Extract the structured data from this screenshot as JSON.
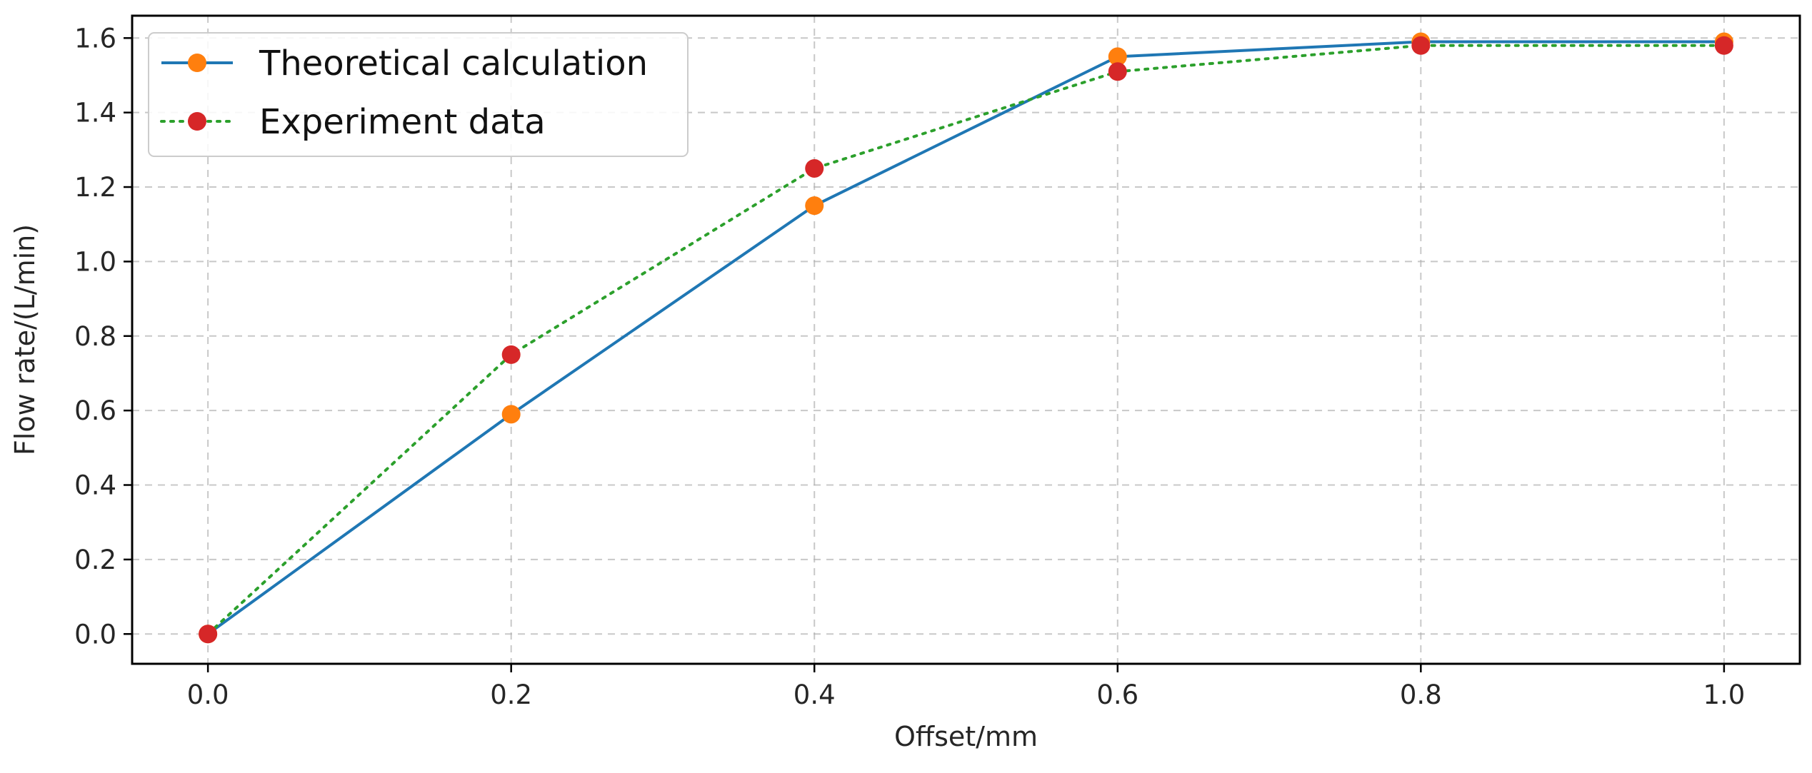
{
  "chart_data": {
    "type": "line",
    "title": "",
    "xlabel": "Offset/mm",
    "ylabel": "Flow rate/(L/min)",
    "xlim": [
      -0.05,
      1.05
    ],
    "ylim": [
      -0.08,
      1.66
    ],
    "x_ticks": [
      0.0,
      0.2,
      0.4,
      0.6,
      0.8,
      1.0
    ],
    "x_tick_labels": [
      "0.0",
      "0.2",
      "0.4",
      "0.6",
      "0.8",
      "1.0"
    ],
    "y_ticks": [
      0.0,
      0.2,
      0.4,
      0.6,
      0.8,
      1.0,
      1.2,
      1.4,
      1.6
    ],
    "y_tick_labels": [
      "0.0",
      "0.2",
      "0.4",
      "0.6",
      "0.8",
      "1.0",
      "1.2",
      "1.4",
      "1.6"
    ],
    "grid": true,
    "legend_position": "top-left",
    "x": [
      0.0,
      0.2,
      0.4,
      0.6,
      0.8,
      1.0
    ],
    "series": [
      {
        "name": "Theoretical calculation",
        "values": [
          0.0,
          0.59,
          1.15,
          1.55,
          1.59,
          1.59
        ],
        "line_color": "#1f77b4",
        "marker_color": "#ff7f0e",
        "line_style": "solid"
      },
      {
        "name": "Experiment data",
        "values": [
          0.0,
          0.75,
          1.25,
          1.51,
          1.58,
          1.58
        ],
        "line_color": "#2ca02c",
        "marker_color": "#d62728",
        "line_style": "dotted"
      }
    ]
  }
}
